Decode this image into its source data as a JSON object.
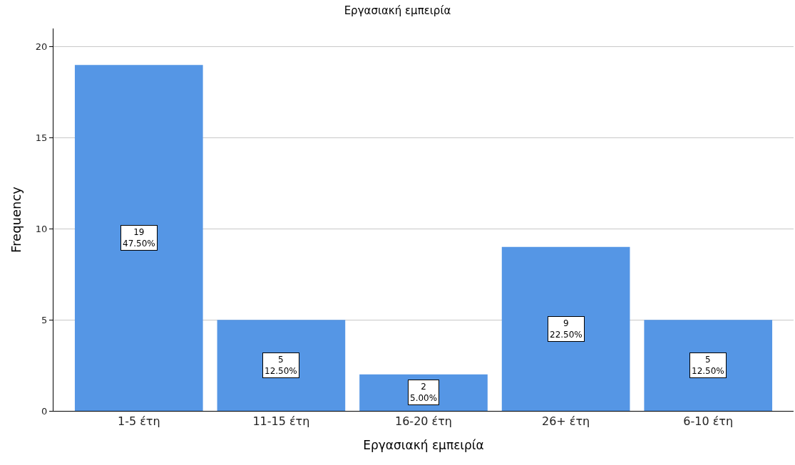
{
  "chart_data": {
    "type": "bar",
    "title": "Εργασιακή εμπειρία",
    "xlabel": "Εργασιακή εμπειρία",
    "ylabel": "Frequency",
    "categories": [
      "1-5 έτη",
      "11-15 έτη",
      "16-20 έτη",
      "26+ έτη",
      "6-10 έτη"
    ],
    "values": [
      19,
      5,
      2,
      9,
      5
    ],
    "value_labels": [
      "19\n47.50%",
      "5\n12.50%",
      "2\n5.00%",
      "9\n22.50%",
      "5\n12.50%"
    ],
    "color": "#5596e5",
    "ylim": [
      0,
      21
    ],
    "yticks": [
      0,
      5,
      10,
      15,
      20
    ],
    "grid": "y",
    "legend": false
  }
}
